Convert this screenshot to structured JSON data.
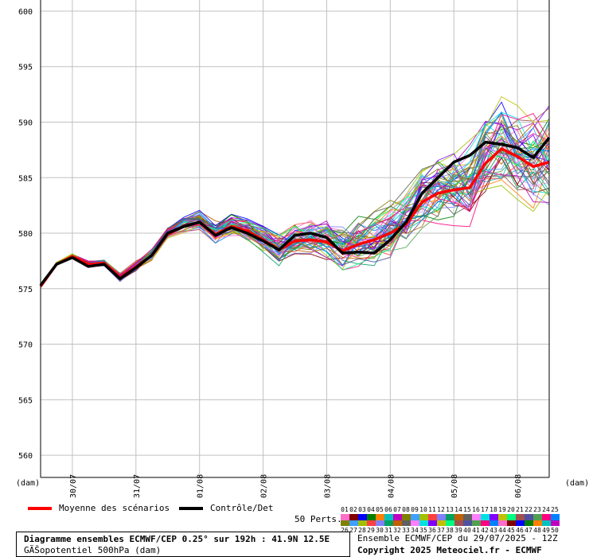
{
  "header": {
    "title": "Diagramme ensembles ECMWF/CEP 0.25° sur 192h : 41.9N 12.5E",
    "subtitle": "GÃŠopotentiel 500hPa (dam)"
  },
  "legend": {
    "mean_label": "Moyenne des scénarios",
    "control_label": "Contrôle/Det",
    "perts_label": "50 Perts.",
    "perts_row1": [
      "01",
      "02",
      "03",
      "04",
      "05",
      "06",
      "07",
      "08",
      "09",
      "10",
      "11",
      "12",
      "13",
      "14",
      "15",
      "16",
      "17",
      "18",
      "19",
      "20",
      "21",
      "22",
      "23",
      "24",
      "25"
    ],
    "perts_row2": [
      "26",
      "27",
      "28",
      "29",
      "30",
      "31",
      "32",
      "33",
      "34",
      "35",
      "36",
      "37",
      "38",
      "39",
      "40",
      "41",
      "42",
      "43",
      "44",
      "45",
      "46",
      "47",
      "48",
      "49",
      "50"
    ]
  },
  "credits": {
    "run": "Ensemble ECMWF/CEP du 29/07/2025 - 12Z",
    "copyright": "Copyright 2025 Meteociel.fr - ECMWF"
  },
  "colors": {
    "mean": "#ff0000",
    "control": "#000000",
    "grid": "#c0c0c0",
    "member_palette": [
      "#ff6ec7",
      "#800000",
      "#0000ff",
      "#008000",
      "#ff8000",
      "#00c0c0",
      "#c000c0",
      "#808000",
      "#40a0ff",
      "#a0c000",
      "#ff4040",
      "#8080ff",
      "#00a060",
      "#c06000",
      "#606060",
      "#ff80ff",
      "#00e0e0",
      "#8000ff",
      "#c0c000",
      "#00ff80",
      "#a05050",
      "#5050a0",
      "#50a050",
      "#ff0080",
      "#0080ff"
    ]
  },
  "chart_data": {
    "type": "line",
    "ylabel_left": "(dam)",
    "xlabel_left": "(dam)",
    "xlabel_right": "(dam)",
    "ylim": [
      558,
      601
    ],
    "yticks": [
      560,
      565,
      570,
      575,
      580,
      585,
      590,
      595,
      600
    ],
    "x_range_hours": [
      0,
      192
    ],
    "x_step_hours": 6,
    "xticks": [
      {
        "hour": 12,
        "label": "30/07"
      },
      {
        "hour": 36,
        "label": "31/07"
      },
      {
        "hour": 60,
        "label": "01/08"
      },
      {
        "hour": 84,
        "label": "02/08"
      },
      {
        "hour": 108,
        "label": "03/08"
      },
      {
        "hour": 132,
        "label": "04/08"
      },
      {
        "hour": 156,
        "label": "05/08"
      },
      {
        "hour": 180,
        "label": "06/08"
      }
    ],
    "series": [
      {
        "name": "Moyenne des scénarios",
        "kind": "mean",
        "values": [
          575.2,
          577.2,
          577.9,
          577.2,
          577.3,
          576.0,
          577.0,
          578.0,
          579.9,
          580.6,
          581.0,
          579.9,
          580.6,
          580.2,
          579.4,
          578.5,
          579.3,
          579.4,
          579.2,
          578.4,
          579.0,
          579.4,
          580.0,
          580.8,
          582.8,
          583.6,
          583.9,
          584.1,
          586.3,
          587.6,
          586.9,
          586.0,
          586.4
        ]
      },
      {
        "name": "Contrôle/Det",
        "kind": "control",
        "values": [
          575.3,
          577.2,
          577.8,
          577.0,
          577.2,
          575.9,
          576.9,
          578.0,
          580.0,
          580.6,
          581.0,
          579.8,
          580.5,
          580.0,
          579.3,
          578.5,
          579.8,
          580.0,
          579.6,
          578.2,
          578.3,
          578.2,
          579.4,
          581.0,
          583.6,
          585.0,
          586.4,
          587.0,
          588.2,
          588.0,
          587.7,
          586.8,
          588.6
        ]
      }
    ],
    "ensemble_members_count": 50
  }
}
